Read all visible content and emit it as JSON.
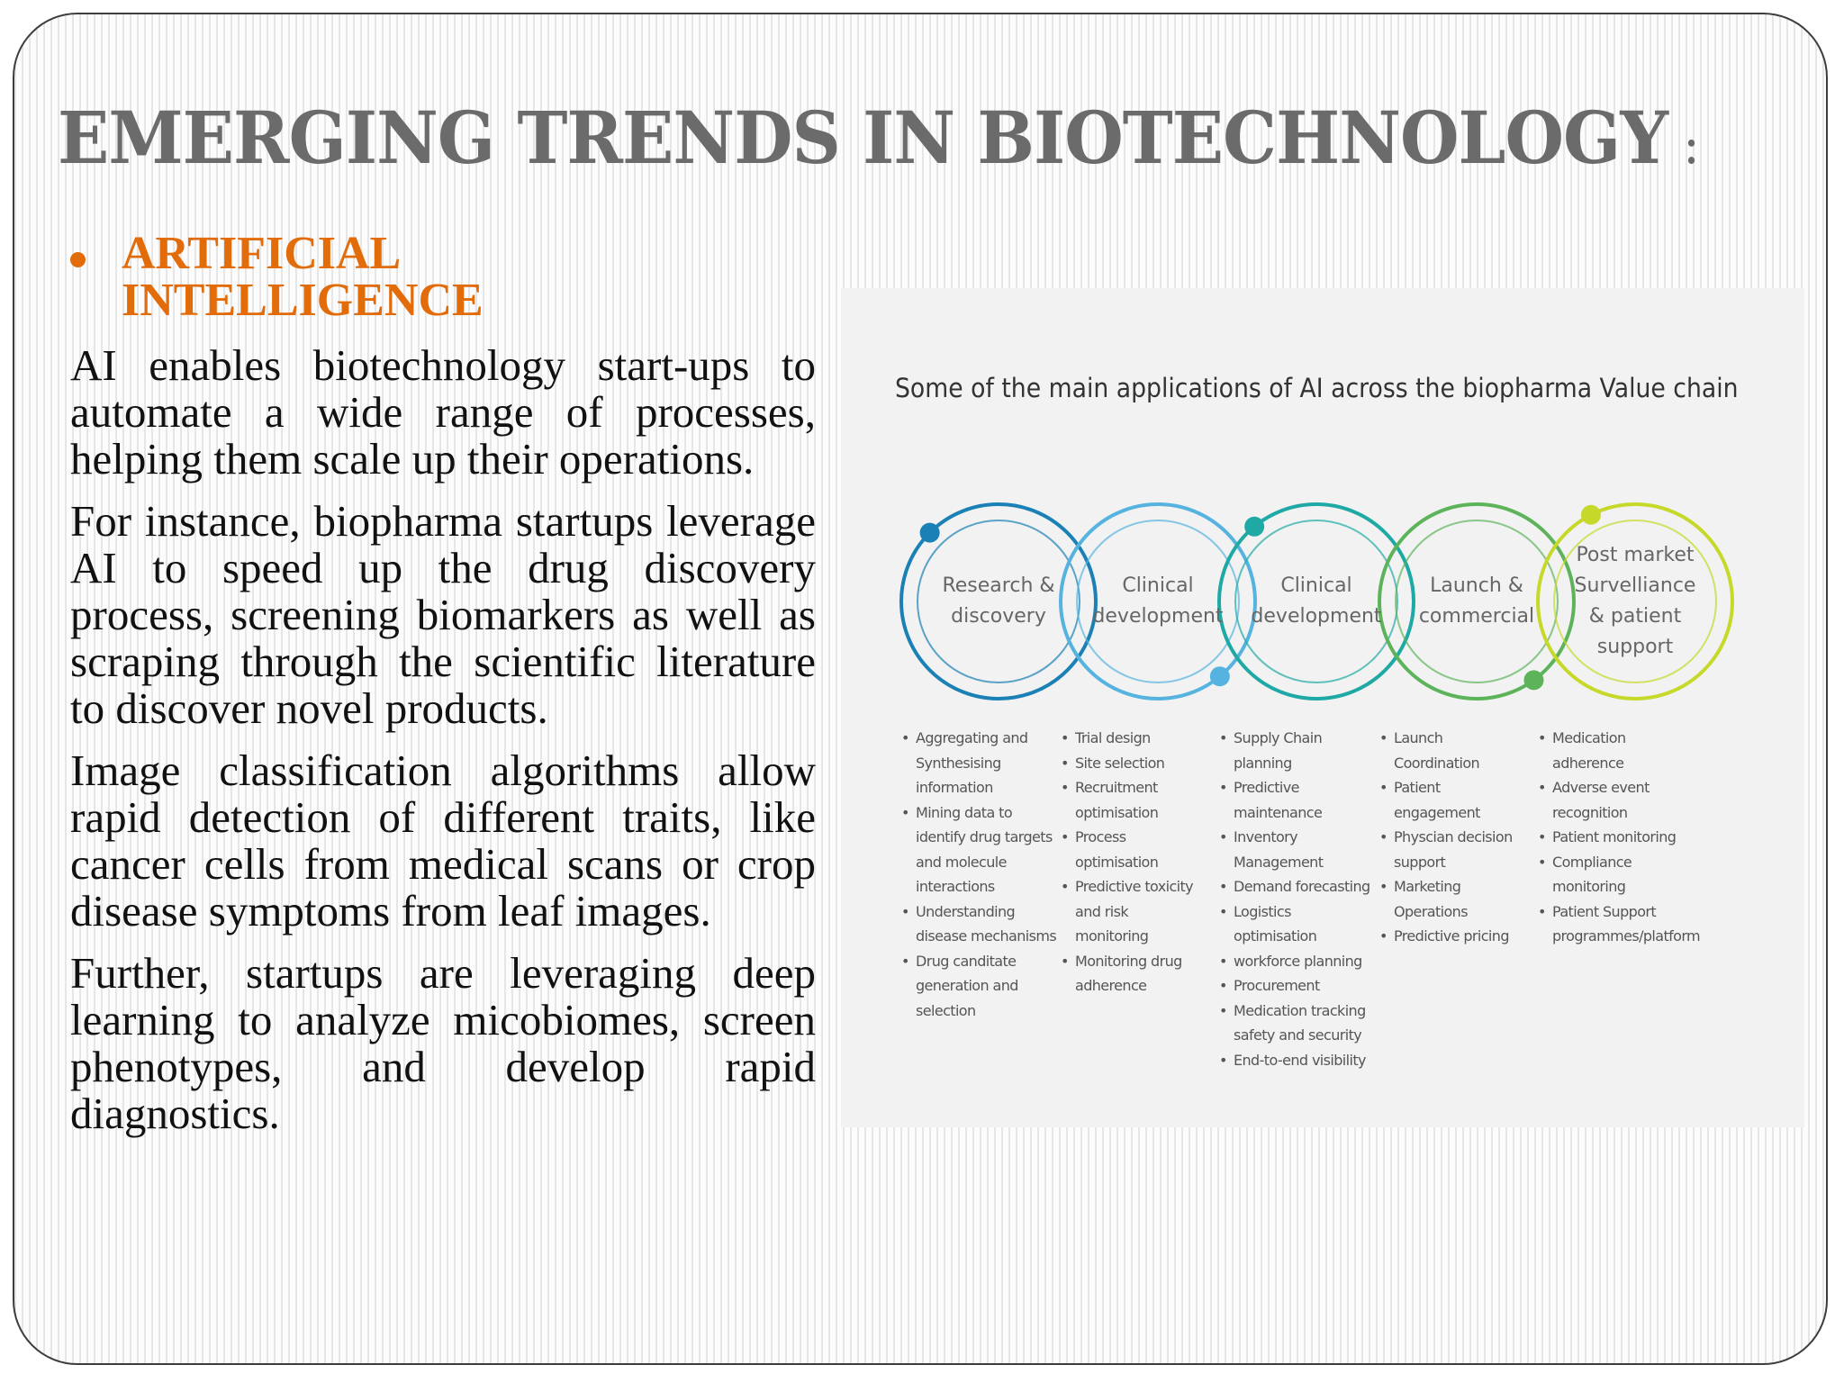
{
  "slide": {
    "title": "EMERGING TRENDS IN BIOTECHNOLOGY",
    "title_colon": ":",
    "bullet_heading": "ARTIFICIAL INTELLIGENCE",
    "paragraphs": [
      "AI enables biotechnology start-ups to automate a wide range of processes, helping them scale up their operations.",
      "For instance, biopharma startups leverage AI to speed up the drug discovery process, screening biomarkers as well as scraping through the scientific literature to discover novel products.",
      "Image classification algorithms allow rapid detection of different traits, like cancer cells from medical scans or crop disease symptoms from leaf images.",
      "Further, startups are leveraging deep learning to analyze micobiomes, screen phenotypes, and develop rapid diagnostics."
    ],
    "colors": {
      "title": "#6b6b6b",
      "accent": "#e36c0a"
    }
  },
  "diagram": {
    "title": "Some of the main applications of AI across the biopharma Value chain",
    "stages": [
      {
        "label": "Research &\ndiscovery",
        "color": "#1a80b5",
        "items": [
          "Aggregating and\nSynthesising\ninformation",
          "Mining data to\nidentify drug targets\nand molecule\ninteractions",
          "Understanding\ndisease mechanisms",
          "Drug canditate\ngeneration and\nselection"
        ]
      },
      {
        "label": "Clinical\ndevelopment",
        "color": "#56b3e0",
        "items": [
          "Trial design",
          "Site selection",
          "Recruitment\noptimisation",
          "Process\noptimisation",
          "Predictive toxicity\nand risk\nmonitoring",
          "Monitoring drug\nadherence"
        ]
      },
      {
        "label": "Clinical\ndevelopment",
        "color": "#1fa9a5",
        "items": [
          "Supply Chain\nplanning",
          "Predictive\nmaintenance",
          "Inventory\nManagement",
          "Demand forecasting",
          "Logistics\noptimisation",
          "workforce planning",
          "Procurement",
          "Medication tracking\nsafety and security",
          "End-to-end visibility"
        ]
      },
      {
        "label": "Launch &\ncommercial",
        "color": "#5db35a",
        "items": [
          "Launch\nCoordination",
          "Patient\nengagement",
          "Physcian decision\nsupport",
          "Marketing\nOperations",
          "Predictive pricing"
        ]
      },
      {
        "label": "Post market\nSurvelliance\n& patient\nsupport",
        "color": "#c6d92b",
        "items": [
          "Medication\nadherence",
          "Adverse event\nrecognition",
          "Patient monitoring",
          "Compliance\nmonitoring",
          "Patient Support\nprogrammes/platform"
        ]
      }
    ]
  }
}
